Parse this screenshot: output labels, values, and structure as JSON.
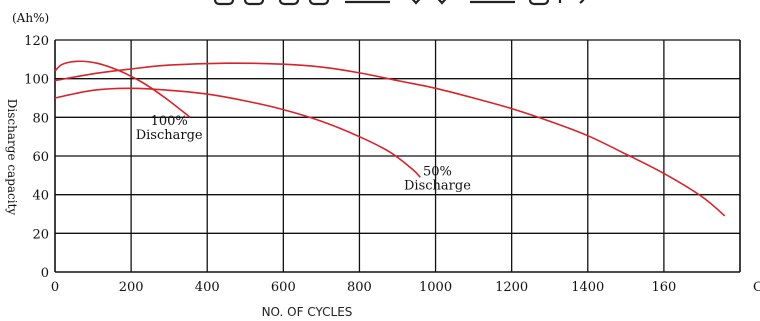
{
  "chart_data": {
    "type": "line",
    "title": "",
    "ylabel": "Discharge capacity",
    "yunit": "(Ah%)",
    "xlabel": "NO. OF CYCLES",
    "y_ticks": [
      "0",
      "20",
      "40",
      "60",
      "80",
      "100",
      "120"
    ],
    "x_ticks": [
      "0",
      "200",
      "400",
      "600",
      "800",
      "1000",
      "1200",
      "1400",
      "160"
    ],
    "ylim": [
      0,
      120
    ],
    "xlim": [
      0,
      1800
    ],
    "grid": true,
    "curve_color": "#d8232a",
    "series": [
      {
        "name": "100% Discharge",
        "points": [
          [
            0,
            104
          ],
          [
            20,
            107.5
          ],
          [
            60,
            109
          ],
          [
            110,
            108
          ],
          [
            170,
            104
          ],
          [
            230,
            98
          ],
          [
            290,
            90
          ],
          [
            355,
            80
          ]
        ]
      },
      {
        "name": "100% Discharge",
        "points": [
          [
            0,
            99
          ],
          [
            100,
            102.5
          ],
          [
            200,
            105
          ],
          [
            300,
            107
          ],
          [
            450,
            108
          ],
          [
            600,
            107.5
          ],
          [
            700,
            106
          ],
          [
            800,
            103
          ],
          [
            900,
            99
          ],
          [
            1000,
            95
          ],
          [
            1100,
            90
          ],
          [
            1200,
            84.5
          ],
          [
            1300,
            78
          ],
          [
            1400,
            70.5
          ],
          [
            1500,
            61
          ],
          [
            1600,
            51
          ],
          [
            1700,
            39
          ],
          [
            1760,
            29
          ]
        ]
      },
      {
        "name": "50% Discharge",
        "points": [
          [
            0,
            90
          ],
          [
            100,
            94
          ],
          [
            200,
            95
          ],
          [
            300,
            94
          ],
          [
            400,
            92
          ],
          [
            500,
            88.5
          ],
          [
            600,
            84
          ],
          [
            700,
            78
          ],
          [
            800,
            70
          ],
          [
            880,
            62
          ],
          [
            940,
            53
          ],
          [
            960,
            49
          ]
        ]
      }
    ],
    "annotations": [
      {
        "lines": [
          "100%",
          "Discharge"
        ],
        "x": 300,
        "y": 76
      },
      {
        "lines": [
          "50%",
          "Discharge"
        ],
        "x": 1005,
        "y": 50
      }
    ]
  }
}
